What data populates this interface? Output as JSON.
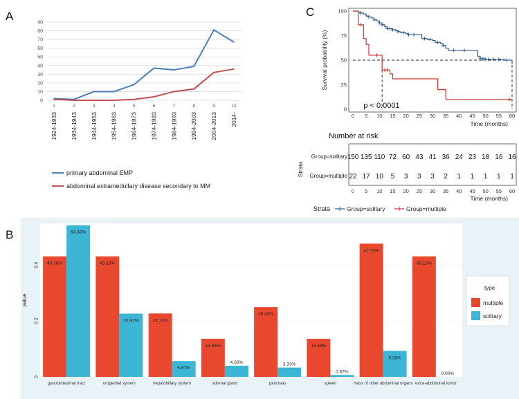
{
  "panels": {
    "a": "A",
    "b": "B",
    "c": "C"
  },
  "chart_data": [
    {
      "type": "line",
      "panel": "A",
      "categories": [
        "1924-1933",
        "1934-1943",
        "1944-1953",
        "1954-1963",
        "1964-1973",
        "1974-1983",
        "1984-1993",
        "1994-2003",
        "2004-2013",
        "2014-"
      ],
      "category_index": [
        "1",
        "2",
        "3",
        "4",
        "5",
        "6",
        "7",
        "8",
        "9",
        "10"
      ],
      "yticks": [
        0,
        10,
        20,
        30,
        40,
        50,
        60,
        70,
        80,
        90
      ],
      "ylim": [
        0,
        90
      ],
      "series": [
        {
          "name": "primary abdominal EMP",
          "color": "#4a7ebb",
          "values": [
            2,
            1,
            10,
            10,
            18,
            37,
            35,
            39,
            81,
            67
          ]
        },
        {
          "name": "abdominal extramedullary disease secondary to MM",
          "color": "#c0504d",
          "values": [
            1,
            0,
            0,
            0,
            1,
            4,
            10,
            13,
            32,
            36
          ]
        }
      ],
      "legend": [
        "primary abdominal EMP",
        "abdominal extramedullary disease secondary to MM"
      ]
    },
    {
      "type": "line",
      "subtype": "kaplan-meier",
      "panel": "C",
      "ylabel": "Survival probability (%)",
      "xlabel": "Time (months)",
      "yticks": [
        0,
        25,
        50,
        75,
        100
      ],
      "xticks": [
        0,
        5,
        10,
        15,
        20,
        25,
        30,
        35,
        40,
        45,
        50,
        55,
        60
      ],
      "xlim": [
        0,
        60
      ],
      "ylim": [
        0,
        100
      ],
      "pvalue": "p < 0.0001",
      "series": [
        {
          "name": "Group=solitary",
          "color": "#2a5d8a",
          "steps": [
            [
              0,
              100
            ],
            [
              2,
              99
            ],
            [
              3,
              98
            ],
            [
              4,
              97
            ],
            [
              5,
              95
            ],
            [
              6,
              94
            ],
            [
              7,
              93
            ],
            [
              8,
              91
            ],
            [
              9,
              90
            ],
            [
              10,
              88
            ],
            [
              11,
              86
            ],
            [
              12,
              84
            ],
            [
              13,
              82
            ],
            [
              15,
              81
            ],
            [
              16,
              80
            ],
            [
              17,
              79
            ],
            [
              18,
              78
            ],
            [
              20,
              77
            ],
            [
              21,
              76
            ],
            [
              25,
              76
            ],
            [
              26,
              72
            ],
            [
              28,
              71
            ],
            [
              30,
              70
            ],
            [
              31,
              68
            ],
            [
              33,
              67
            ],
            [
              34,
              65
            ],
            [
              35,
              62
            ],
            [
              36,
              60
            ],
            [
              46,
              60
            ],
            [
              47,
              54
            ],
            [
              48,
              52
            ],
            [
              50,
              51
            ],
            [
              57,
              50
            ],
            [
              60,
              46
            ]
          ],
          "censors": [
            [
              3,
              98
            ],
            [
              6,
              94
            ],
            [
              8,
              91
            ],
            [
              10,
              88
            ],
            [
              11,
              86
            ],
            [
              13,
              82
            ],
            [
              14,
              82
            ],
            [
              15,
              81
            ],
            [
              17,
              79
            ],
            [
              19,
              78
            ],
            [
              21,
              76
            ],
            [
              23,
              76
            ],
            [
              27,
              72
            ],
            [
              29,
              71
            ],
            [
              32,
              68
            ],
            [
              34,
              65
            ],
            [
              38,
              60
            ],
            [
              42,
              60
            ],
            [
              48,
              52
            ],
            [
              49,
              51
            ],
            [
              51,
              51
            ],
            [
              53,
              51
            ],
            [
              55,
              51
            ],
            [
              58,
              50
            ]
          ]
        },
        {
          "name": "Group=multiple",
          "color": "#d0342c",
          "steps": [
            [
              0,
              100
            ],
            [
              2,
              86
            ],
            [
              4,
              72
            ],
            [
              5,
              66
            ],
            [
              6,
              55
            ],
            [
              10,
              55
            ],
            [
              11,
              40
            ],
            [
              14,
              36
            ],
            [
              15,
              31
            ],
            [
              26,
              31
            ],
            [
              30,
              31
            ],
            [
              32,
              20
            ],
            [
              35,
              10
            ],
            [
              60,
              10
            ]
          ],
          "censors": [
            [
              3,
              86
            ],
            [
              9,
              55
            ],
            [
              12,
              40
            ],
            [
              13,
              40
            ],
            [
              59,
              10
            ]
          ]
        }
      ],
      "median_line": 50,
      "median_times": [
        11,
        60
      ],
      "risk_table": {
        "title": "Number at risk",
        "strata_label": "Strata",
        "xlabel": "Time (months)",
        "xticks": [
          "0",
          "5",
          "10",
          "15",
          "20",
          "25",
          "30",
          "35",
          "40",
          "45",
          "50",
          "55",
          "60"
        ],
        "rows": [
          {
            "label": "Group=solitary",
            "values": [
              "150",
              "135",
              "110",
              "72",
              "60",
              "43",
              "41",
              "36",
              "24",
              "23",
              "18",
              "16",
              "16"
            ]
          },
          {
            "label": "Group=multiple",
            "values": [
              "22",
              "17",
              "10",
              "5",
              "3",
              "3",
              "3",
              "2",
              "1",
              "1",
              "1",
              "1",
              "1"
            ]
          }
        ]
      },
      "legend": {
        "title": "Strata",
        "items": [
          "Group=solitary",
          "Group=multiple"
        ]
      }
    },
    {
      "type": "bar",
      "panel": "B",
      "ylabel": "value",
      "yticks": [
        0,
        0.2,
        0.4
      ],
      "ylim": [
        0,
        0.55
      ],
      "categories": [
        "gastrointestinal tract",
        "urogenital system",
        "hepatobiliary system",
        "adrenal gland",
        "pancreas",
        "spleen",
        "mass of other abdominal organs",
        "extra-abdominal tumor"
      ],
      "series": [
        {
          "name": "multiple",
          "color": "#e8492e",
          "values": [
            0.4318,
            0.4318,
            0.2272,
            0.1364,
            0.25,
            0.1364,
            0.4773,
            0.4318
          ],
          "labels": [
            "43.18%",
            "43.18%",
            "22.72%",
            "13.64%",
            "25.00%",
            "13.64%",
            "47.73%",
            "43.18%"
          ]
        },
        {
          "name": "solitary",
          "color": "#3cb6d4",
          "values": [
            0.5433,
            0.2267,
            0.0567,
            0.04,
            0.0333,
            0.0067,
            0.0933,
            0.0
          ],
          "labels": [
            "54.33%",
            "22.67%",
            "5.67%",
            "4.00%",
            "3.33%",
            "0.67%",
            "9.33%",
            "0.00%"
          ]
        }
      ],
      "legend": {
        "title": "type",
        "items": [
          "multiple",
          "solitary"
        ]
      }
    }
  ]
}
